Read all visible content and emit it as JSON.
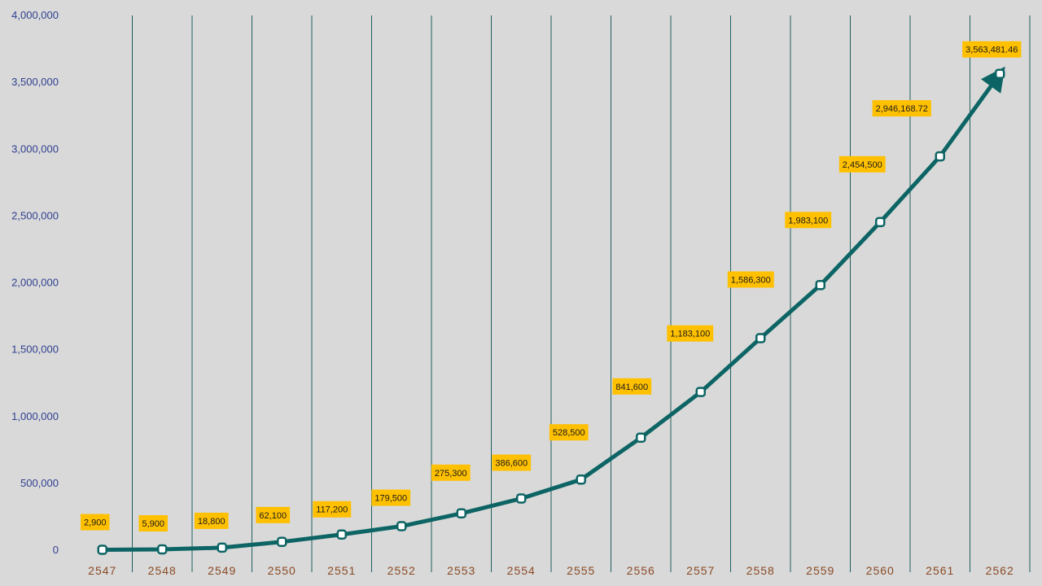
{
  "chart_data": {
    "type": "line",
    "title": "",
    "xlabel": "",
    "ylabel": "",
    "categories": [
      "2547",
      "2548",
      "2549",
      "2550",
      "2551",
      "2552",
      "2553",
      "2554",
      "2555",
      "2556",
      "2557",
      "2558",
      "2559",
      "2560",
      "2561",
      "2562"
    ],
    "values": [
      2900,
      5900,
      18800,
      62100,
      117200,
      179500,
      275300,
      386600,
      528500,
      841600,
      1183100,
      1586300,
      1983100,
      2454500,
      2946168.72,
      3563481.46
    ],
    "data_labels": [
      "2,900",
      "5,900",
      "18,800",
      "62,100",
      "117,200",
      "179,500",
      "275,300",
      "386,600",
      "528,500",
      "841,600",
      "1,183,100",
      "1,586,300",
      "1,983,100",
      "2,454,500",
      "2,946,168.72",
      "3,563,481.46"
    ],
    "ylim": [
      0,
      4000000
    ],
    "yticks": [
      0,
      500000,
      1000000,
      1500000,
      2000000,
      2500000,
      3000000,
      3500000,
      4000000
    ],
    "ytick_labels": [
      "0",
      "500,000",
      "1,000,000",
      "1,500,000",
      "2,000,000",
      "2,500,000",
      "3,000,000",
      "3,500,000",
      "4,000,000"
    ],
    "grid": "vertical",
    "legend": "none",
    "colors": {
      "line": "#0d6464",
      "marker_fill": "#ffffff",
      "label_box": "#ffc000",
      "gridline": "#1f5f5f",
      "ytick_text": "#2f3f8f",
      "xtick_text": "#8a4a24",
      "background": "#d9d9d9"
    }
  }
}
